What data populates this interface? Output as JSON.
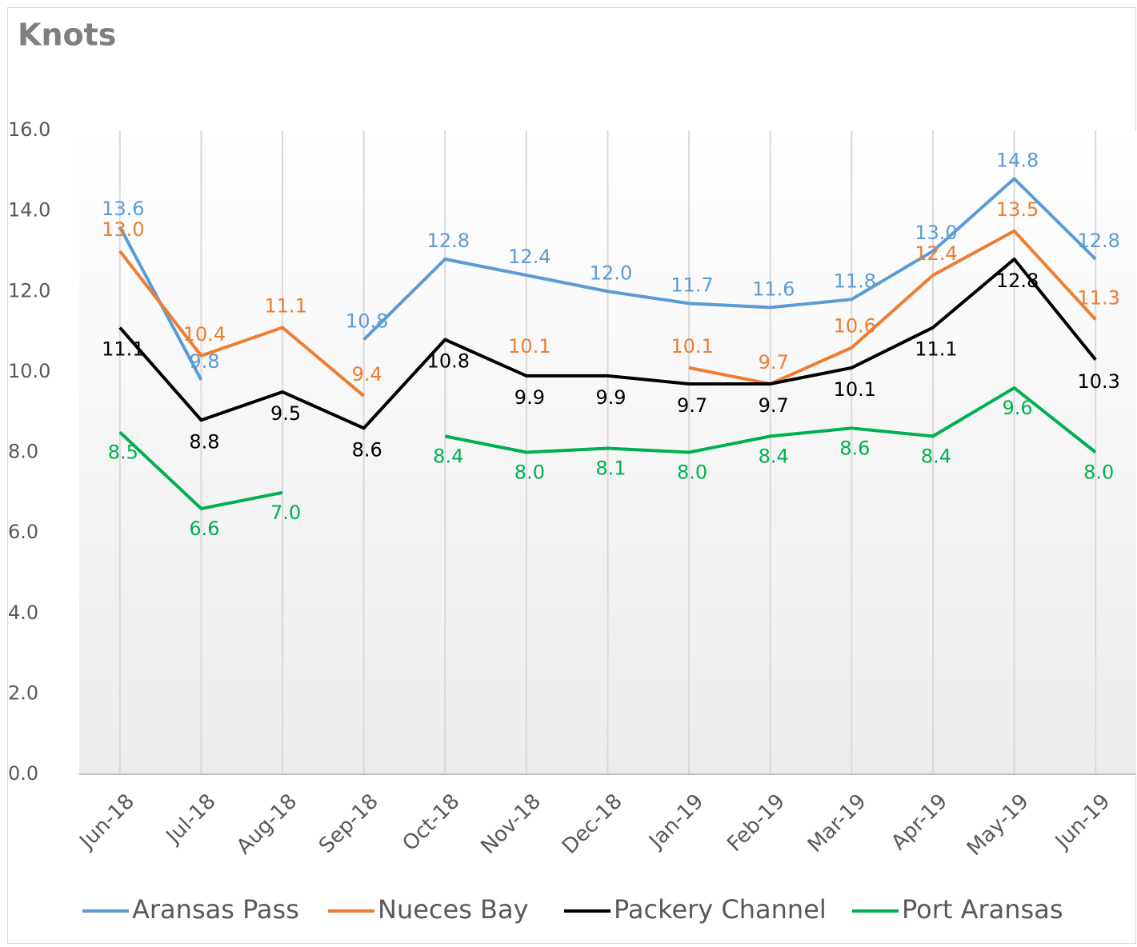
{
  "chart_data": {
    "type": "line",
    "title": "Knots",
    "categories": [
      "Jun-18",
      "Jul-18",
      "Aug-18",
      "Sep-18",
      "Oct-18",
      "Nov-18",
      "Dec-18",
      "Jan-19",
      "Feb-19",
      "Mar-19",
      "Apr-19",
      "May-19",
      "Jun-19"
    ],
    "series": [
      {
        "name": "Aransas Pass",
        "color": "#5b9bd5",
        "values": [
          13.6,
          9.8,
          null,
          10.8,
          12.8,
          12.4,
          12,
          11.7,
          11.6,
          11.8,
          13,
          14.8,
          12.8
        ],
        "value_labels": [
          "13.6",
          "9.8",
          null,
          "10.8",
          "12.8",
          "12.4",
          "12.0",
          "11.7",
          "11.6",
          "11.8",
          "13.0",
          "14.8",
          "12.8"
        ]
      },
      {
        "name": "Nueces Bay",
        "color": "#ed7d31",
        "values": [
          13,
          10.4,
          11.1,
          9.4,
          null,
          10.1,
          null,
          10.1,
          9.7,
          10.6,
          12.4,
          13.5,
          11.3
        ],
        "value_labels": [
          "13.0",
          "10.4",
          "11.1",
          "9.4",
          null,
          "10.1",
          null,
          "10.1",
          "9.7",
          "10.6",
          "12.4",
          "13.5",
          "11.3"
        ]
      },
      {
        "name": "Packery Channel",
        "color": "#000000",
        "values": [
          11.1,
          8.8,
          9.5,
          8.6,
          10.8,
          9.9,
          9.9,
          9.7,
          9.7,
          10.1,
          11.1,
          12.8,
          10.3
        ],
        "value_labels": [
          "11.1",
          "8.8",
          "9.5",
          "8.6",
          "10.8",
          "9.9",
          "9.9",
          "9.7",
          "9.7",
          "10.1",
          "11.1",
          "12.8",
          "10.3"
        ]
      },
      {
        "name": "Port Aransas",
        "color": "#00b050",
        "values": [
          8.5,
          6.6,
          7,
          null,
          8.4,
          8,
          8.1,
          8,
          8.4,
          8.6,
          8.4,
          9.6,
          8
        ],
        "value_labels": [
          "8.5",
          "6.6",
          "7.0",
          null,
          "8.4",
          "8.0",
          "8.1",
          "8.0",
          "8.4",
          "8.6",
          "8.4",
          "9.6",
          "8.0"
        ]
      }
    ],
    "ylim": [
      0,
      16
    ],
    "yticks": [
      {
        "value": 0,
        "label": "0.0"
      },
      {
        "value": 2,
        "label": "2.0"
      },
      {
        "value": 4,
        "label": "4.0"
      },
      {
        "value": 6,
        "label": "6.0"
      },
      {
        "value": 8,
        "label": "8.0"
      },
      {
        "value": 10,
        "label": "10.0"
      },
      {
        "value": 12,
        "label": "12.0"
      },
      {
        "value": 14,
        "label": "14.0"
      },
      {
        "value": 16,
        "label": "16.0"
      }
    ],
    "grid": true,
    "legend": "bottom"
  }
}
